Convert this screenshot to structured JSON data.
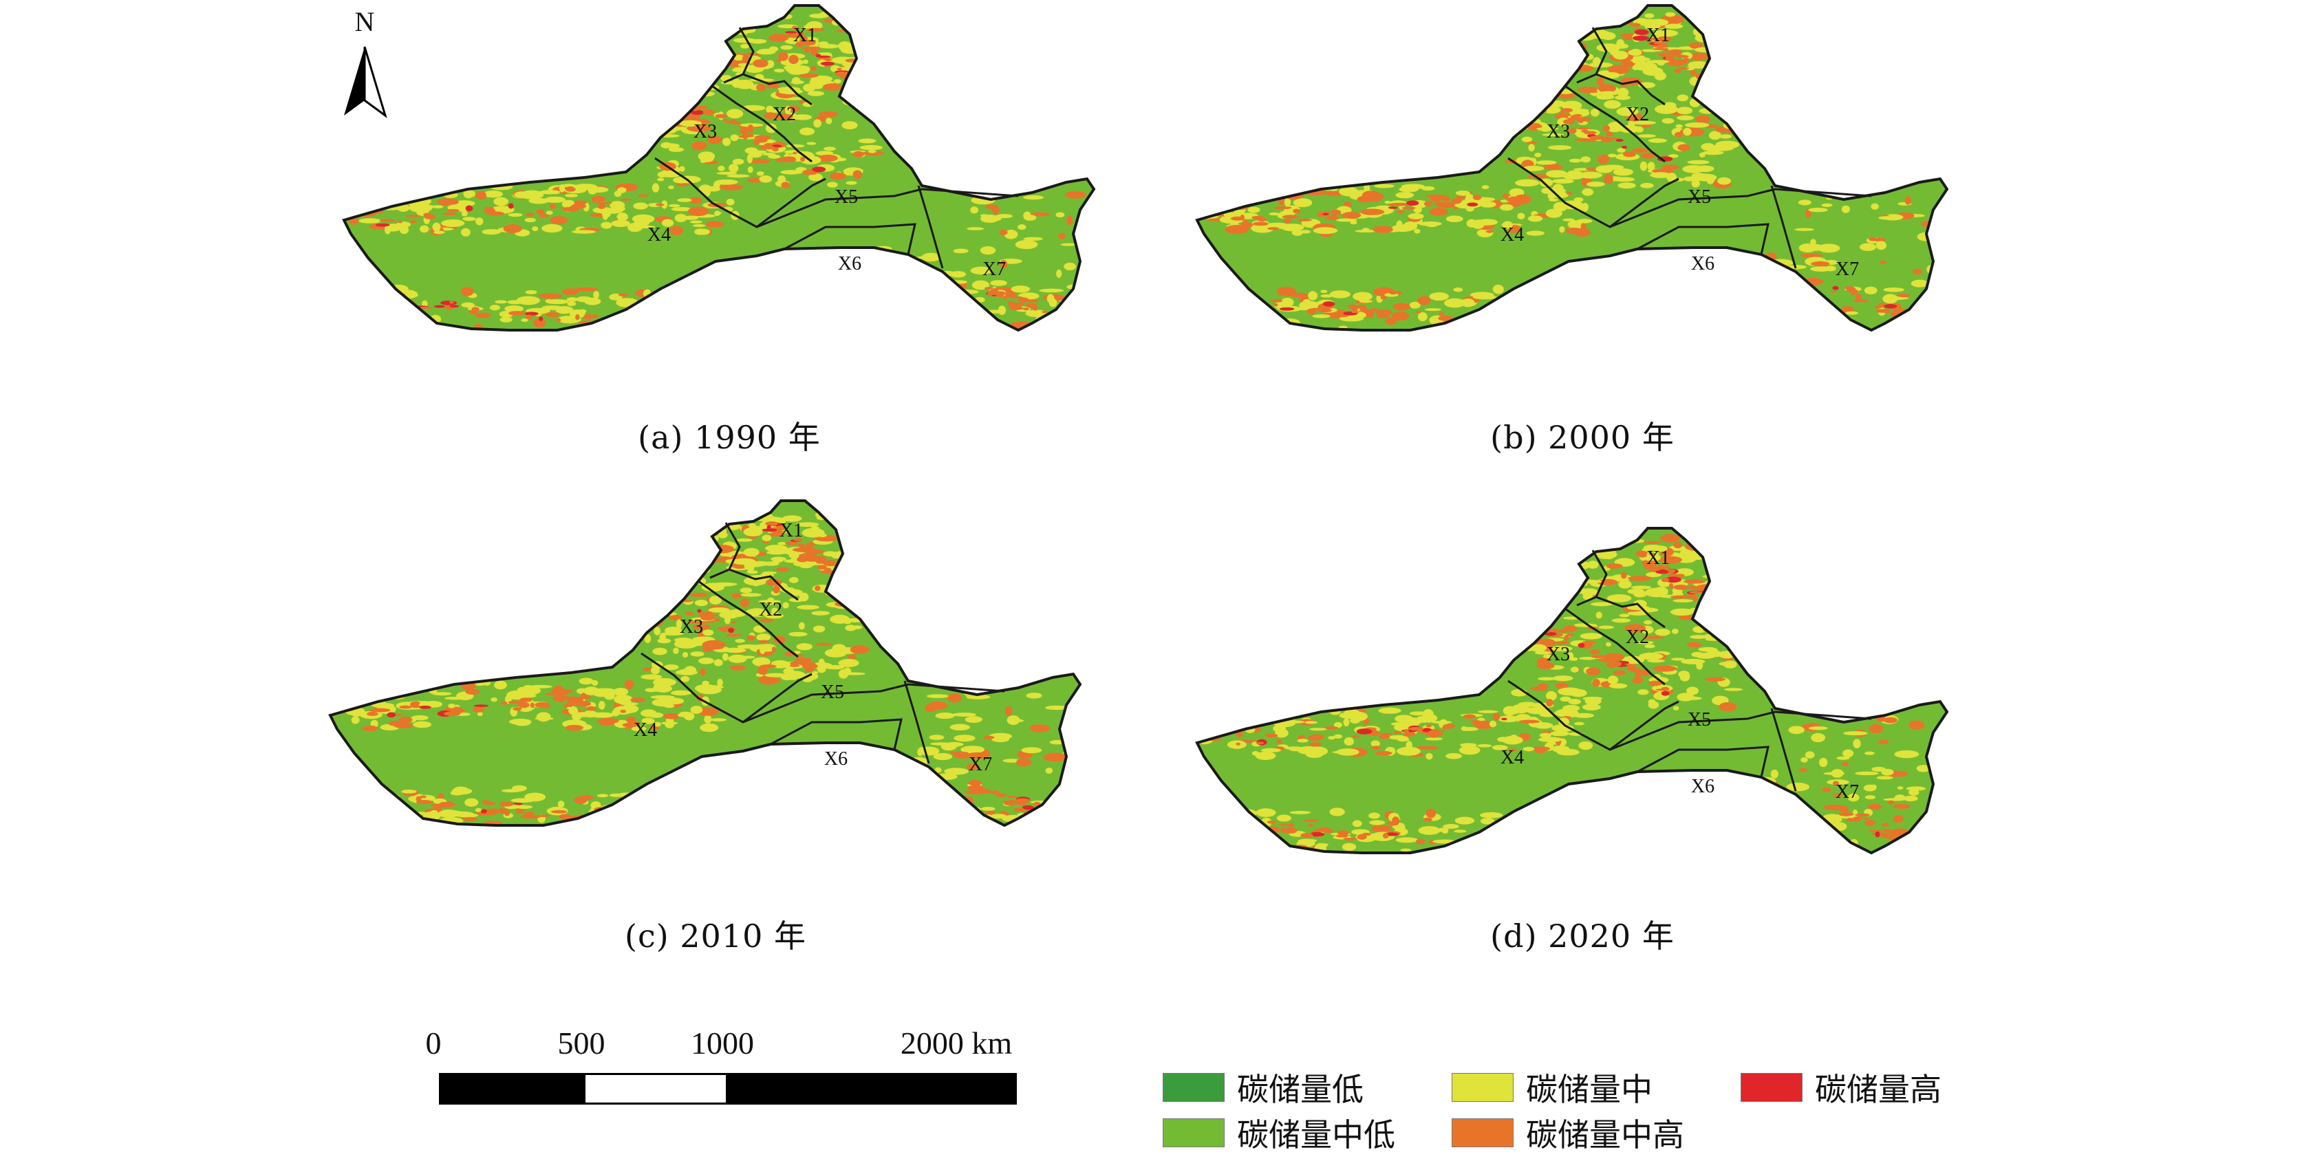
{
  "north_label": "N",
  "regions": [
    "X1",
    "X2",
    "X3",
    "X4",
    "X5",
    "X6",
    "X7"
  ],
  "panels": [
    {
      "caption": "(a) 1990 年"
    },
    {
      "caption": "(b) 2000 年"
    },
    {
      "caption": "(c) 2010 年"
    },
    {
      "caption": "(d) 2020 年"
    }
  ],
  "scale": {
    "ticks": [
      "0",
      "500",
      "1000",
      "2000 km"
    ],
    "tick_values_km": [
      0,
      500,
      1000,
      2000
    ]
  },
  "legend": [
    {
      "label": "碳储量低",
      "color": "#3a9c3a"
    },
    {
      "label": "碳储量中",
      "color": "#dfe33a"
    },
    {
      "label": "碳储量高",
      "color": "#e0262a"
    },
    {
      "label": "碳储量中低",
      "color": "#74bb34"
    },
    {
      "label": "碳储量中高",
      "color": "#e8742a"
    }
  ],
  "colors": {
    "base": "#74bb34",
    "mid": "#dfe33a",
    "midhigh": "#e8742a",
    "high": "#e0262a",
    "outline": "#1a1a1a"
  }
}
